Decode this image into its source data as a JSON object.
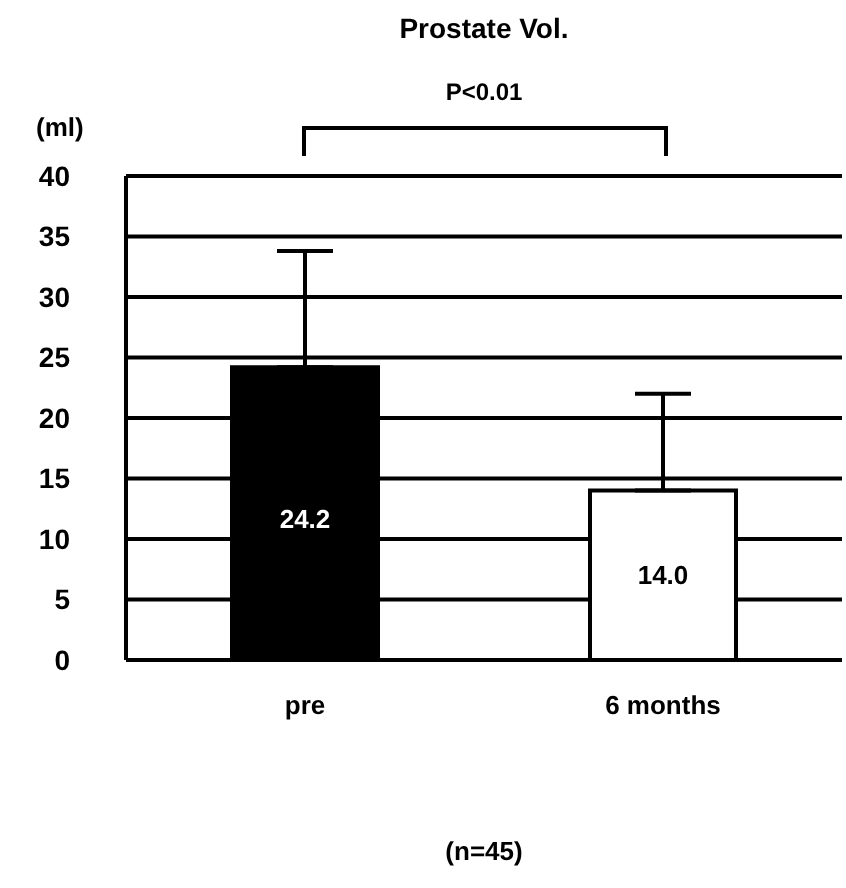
{
  "chart_data": {
    "type": "bar",
    "title": "Prostate Vol.",
    "ylabel": "(ml)",
    "xlabel": "(n=45)",
    "annotations": [
      "P<0.01"
    ],
    "categories": [
      "pre",
      "6 months"
    ],
    "values": [
      24.2,
      14.0
    ],
    "colors": [
      "#000000",
      "#ffffff"
    ],
    "value_labels": [
      "24.2",
      "14.0"
    ],
    "errors": [
      [
        24.2,
        33.8
      ],
      [
        14.0,
        22.0
      ]
    ],
    "ylim": [
      0,
      40
    ],
    "yticks": [
      0,
      5,
      10,
      15,
      20,
      25,
      30,
      35,
      40
    ],
    "grid": "y"
  }
}
